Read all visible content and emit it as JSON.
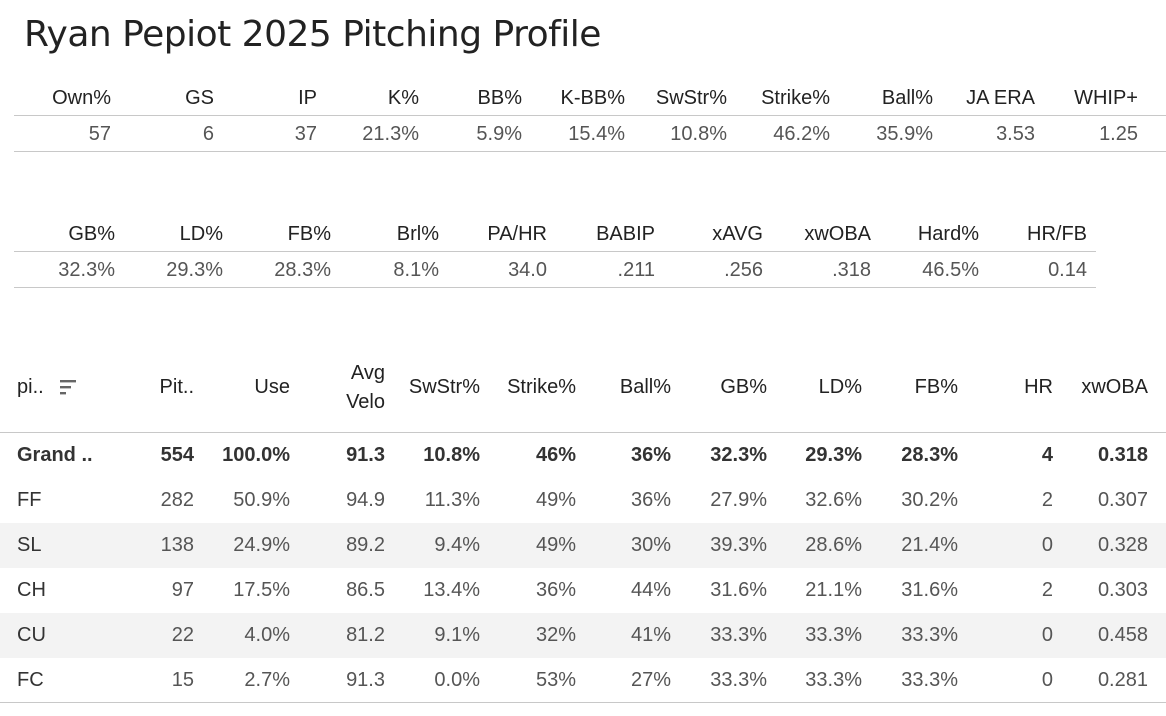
{
  "title": "Ryan Pepiot 2025 Pitching Profile",
  "summary1": {
    "headers": [
      "Own%",
      "GS",
      "IP",
      "K%",
      "BB%",
      "K-BB%",
      "SwStr%",
      "Strike%",
      "Ball%",
      "JA ERA",
      "WHIP+"
    ],
    "values": [
      "57",
      "6",
      "37",
      "21.3%",
      "5.9%",
      "15.4%",
      "10.8%",
      "46.2%",
      "35.9%",
      "3.53",
      "1.25"
    ]
  },
  "summary2": {
    "headers": [
      "GB%",
      "LD%",
      "FB%",
      "Brl%",
      "PA/HR",
      "BABIP",
      "xAVG",
      "xwOBA",
      "Hard%",
      "HR/FB"
    ],
    "values": [
      "32.3%",
      "29.3%",
      "28.3%",
      "8.1%",
      "34.0",
      ".211",
      ".256",
      ".318",
      "46.5%",
      "0.14"
    ]
  },
  "pitch_table": {
    "headers": {
      "pitch": "pi..",
      "pitches": "Pit..",
      "use": "Use",
      "avg_velo_line1": "Avg",
      "avg_velo_line2": "Velo",
      "swstr": "SwStr%",
      "strike": "Strike%",
      "ball": "Ball%",
      "gb": "GB%",
      "ld": "LD%",
      "fb": "FB%",
      "hr": "HR",
      "xwoba": "xwOBA"
    },
    "sort_icon": "sort-descending-icon",
    "rows": [
      [
        "Grand ..",
        "554",
        "100.0%",
        "91.3",
        "10.8%",
        "46%",
        "36%",
        "32.3%",
        "29.3%",
        "28.3%",
        "4",
        "0.318"
      ],
      [
        "FF",
        "282",
        "50.9%",
        "94.9",
        "11.3%",
        "49%",
        "36%",
        "27.9%",
        "32.6%",
        "30.2%",
        "2",
        "0.307"
      ],
      [
        "SL",
        "138",
        "24.9%",
        "89.2",
        "9.4%",
        "49%",
        "30%",
        "39.3%",
        "28.6%",
        "21.4%",
        "0",
        "0.328"
      ],
      [
        "CH",
        "97",
        "17.5%",
        "86.5",
        "13.4%",
        "36%",
        "44%",
        "31.6%",
        "21.1%",
        "31.6%",
        "2",
        "0.303"
      ],
      [
        "CU",
        "22",
        "4.0%",
        "81.2",
        "9.1%",
        "32%",
        "41%",
        "33.3%",
        "33.3%",
        "33.3%",
        "0",
        "0.458"
      ],
      [
        "FC",
        "15",
        "2.7%",
        "91.3",
        "0.0%",
        "53%",
        "27%",
        "33.3%",
        "33.3%",
        "33.3%",
        "0",
        "0.281"
      ]
    ]
  }
}
